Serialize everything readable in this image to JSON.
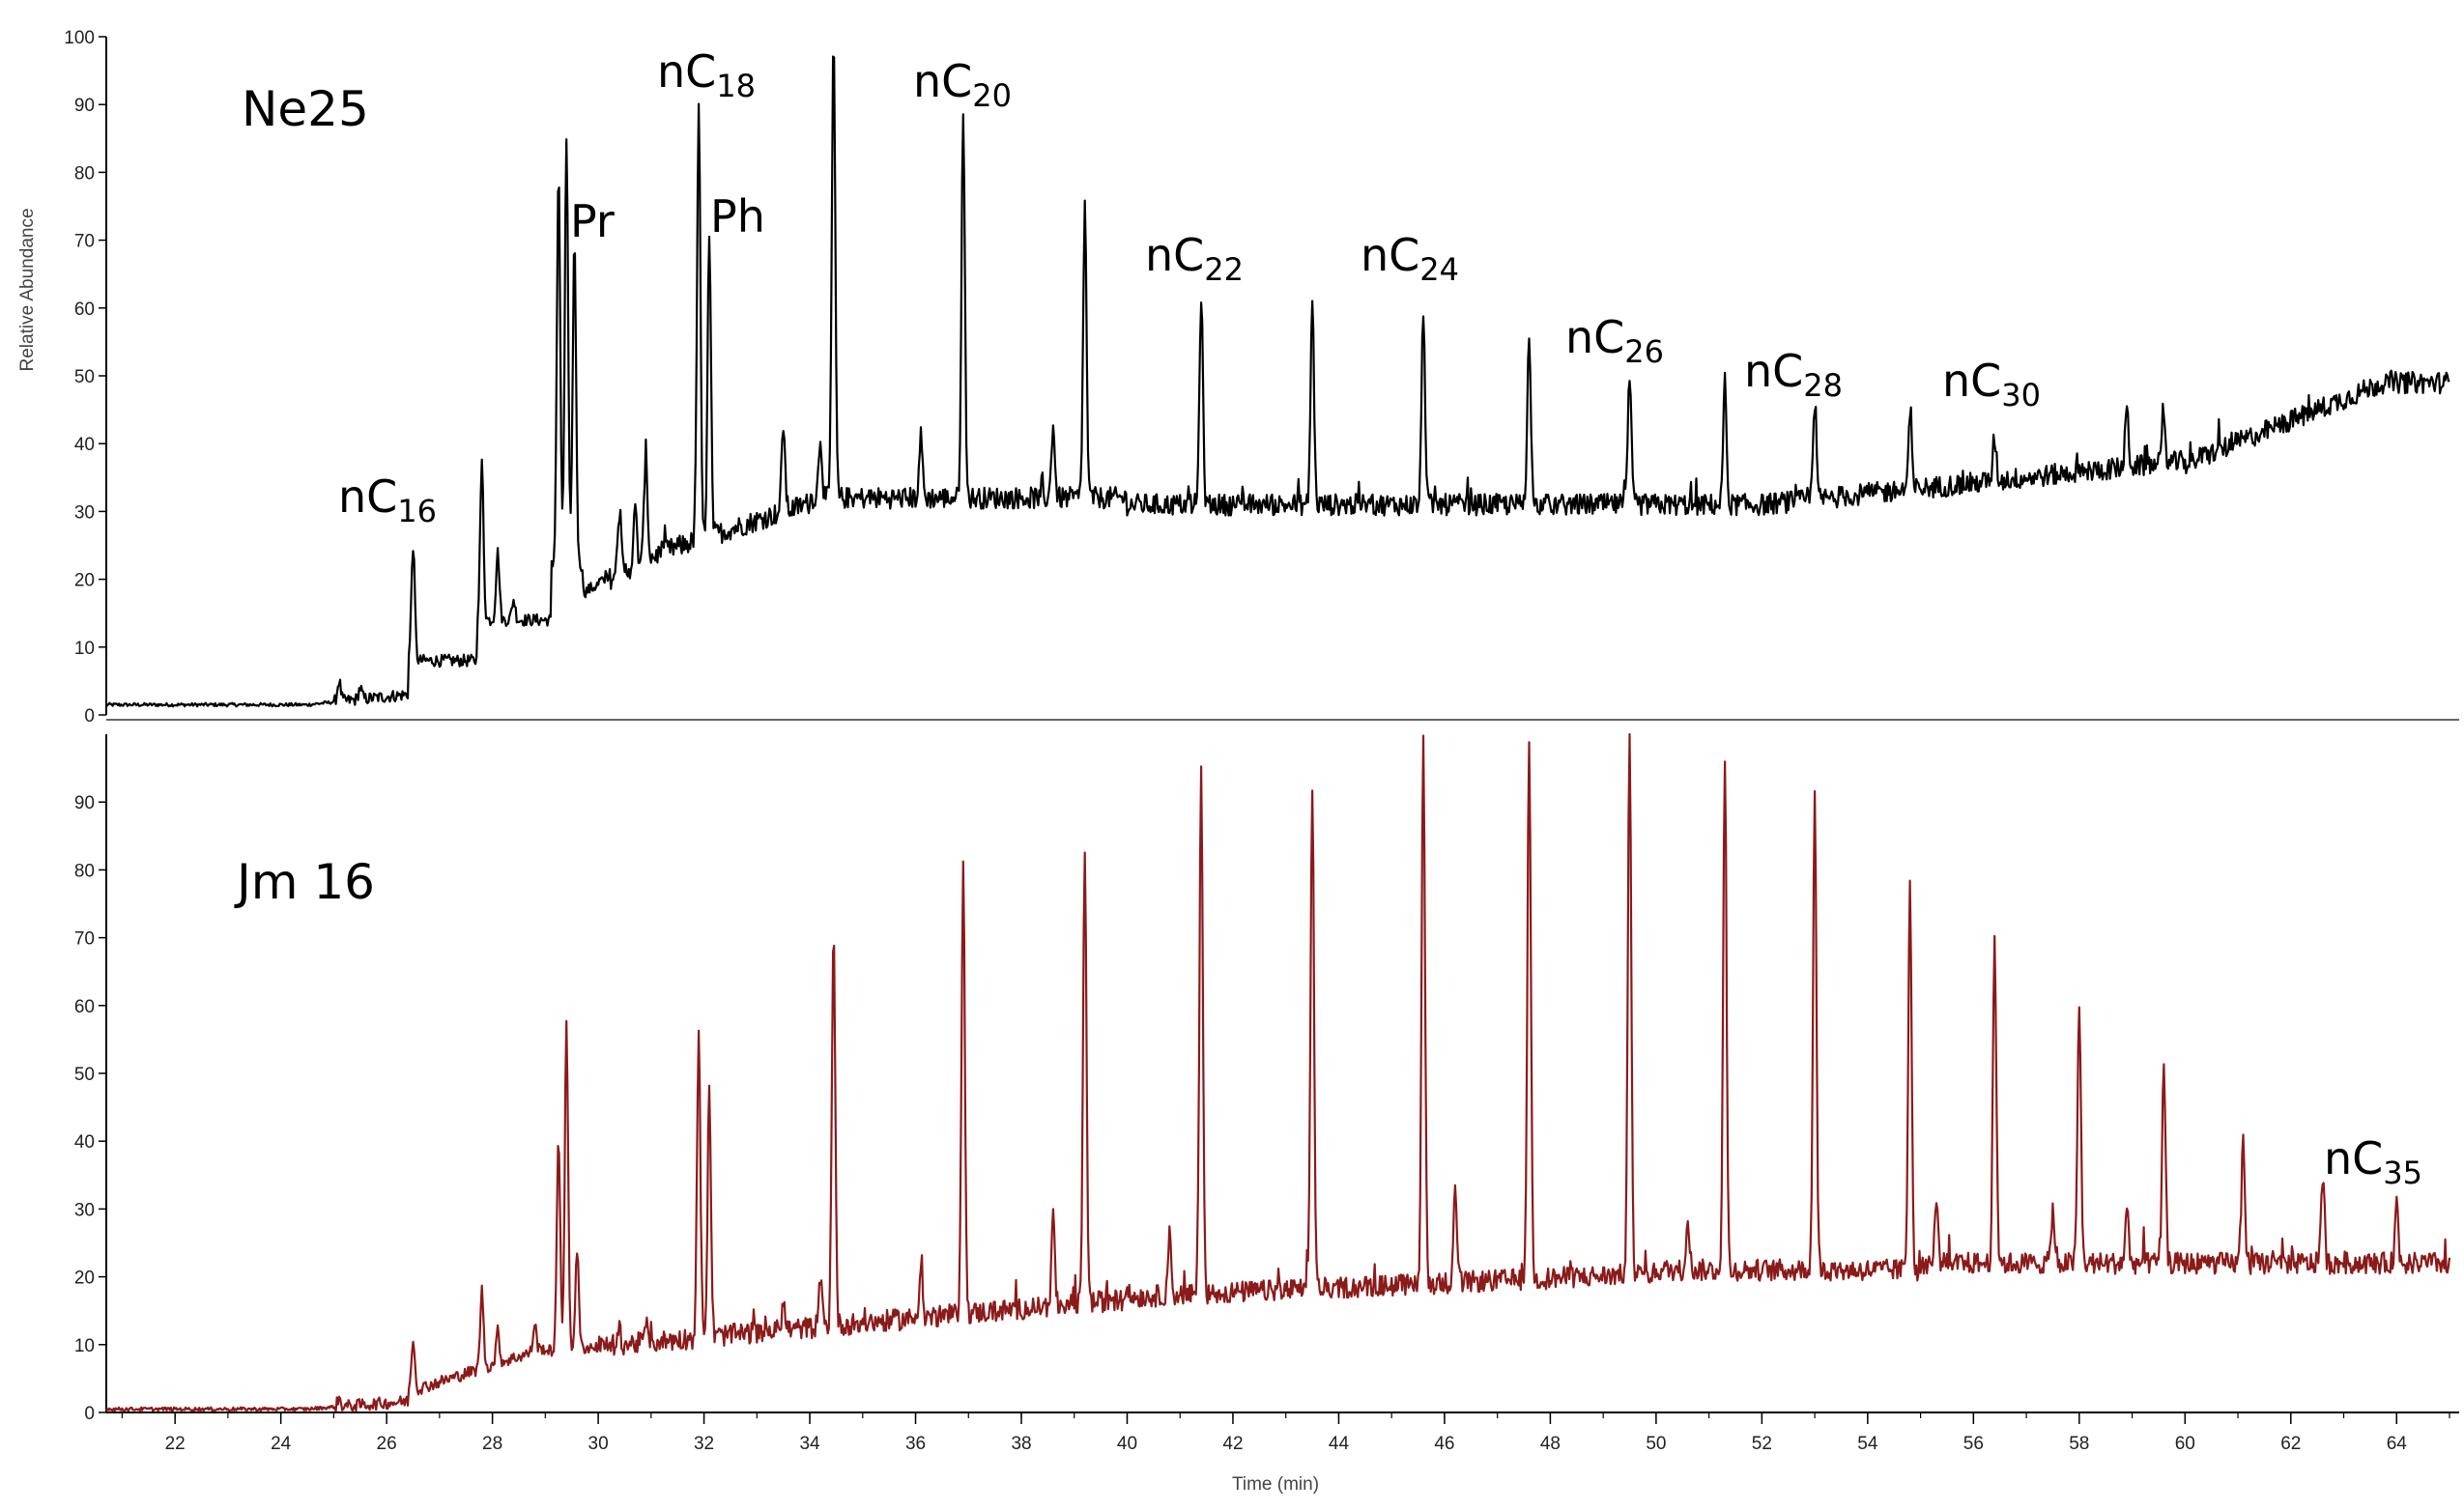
{
  "chart_data": {
    "type": "line",
    "xlabel": "Time (min)",
    "ylabel": "Relative Abundance",
    "xlim": [
      20.7,
      65
    ],
    "x_ticks": [
      22,
      24,
      26,
      28,
      30,
      32,
      34,
      36,
      38,
      40,
      42,
      44,
      46,
      48,
      50,
      52,
      54,
      56,
      58,
      60,
      62,
      64
    ],
    "top_panel": {
      "name": "Ne25",
      "color": "#000000",
      "ylim": [
        0,
        100
      ],
      "y_ticks": [
        0,
        10,
        20,
        30,
        40,
        50,
        60,
        70,
        80,
        90,
        100
      ],
      "peaks": [
        {
          "x": 25.1,
          "y": 5
        },
        {
          "x": 25.5,
          "y": 4
        },
        {
          "x": 26.5,
          "y": 25
        },
        {
          "x": 27.8,
          "y": 37
        },
        {
          "x": 28.1,
          "y": 24
        },
        {
          "x": 28.4,
          "y": 17
        },
        {
          "x": 29.25,
          "y": 80
        },
        {
          "x": 29.4,
          "y": 85
        },
        {
          "x": 29.55,
          "y": 70
        },
        {
          "x": 30.4,
          "y": 30
        },
        {
          "x": 30.7,
          "y": 30
        },
        {
          "x": 30.9,
          "y": 39
        },
        {
          "x": 31.9,
          "y": 89
        },
        {
          "x": 32.1,
          "y": 70
        },
        {
          "x": 33.5,
          "y": 43
        },
        {
          "x": 34.2,
          "y": 41
        },
        {
          "x": 34.45,
          "y": 100
        },
        {
          "x": 36.1,
          "y": 41
        },
        {
          "x": 36.9,
          "y": 88
        },
        {
          "x": 38.6,
          "y": 43
        },
        {
          "x": 39.2,
          "y": 75
        },
        {
          "x": 41.4,
          "y": 62
        },
        {
          "x": 43.5,
          "y": 61
        },
        {
          "x": 45.6,
          "y": 60
        },
        {
          "x": 47.6,
          "y": 57
        },
        {
          "x": 49.5,
          "y": 50
        },
        {
          "x": 51.3,
          "y": 49
        },
        {
          "x": 53.0,
          "y": 45
        },
        {
          "x": 54.8,
          "y": 44
        },
        {
          "x": 56.4,
          "y": 41
        },
        {
          "x": 58.9,
          "y": 45
        },
        {
          "x": 59.6,
          "y": 43
        }
      ],
      "annotations": [
        {
          "base": "nC",
          "sub": "16",
          "peak_x": 26.5
        },
        {
          "base": "Pr",
          "sub": "",
          "peak_x": 29.4
        },
        {
          "base": "nC",
          "sub": "18",
          "peak_x": 31.9
        },
        {
          "base": "Ph",
          "sub": "",
          "peak_x": 32.1
        },
        {
          "base": "nC",
          "sub": "20",
          "peak_x": 36.9
        },
        {
          "base": "nC",
          "sub": "22",
          "peak_x": 41.4
        },
        {
          "base": "nC",
          "sub": "24",
          "peak_x": 45.6
        },
        {
          "base": "nC",
          "sub": "26",
          "peak_x": 49.5
        },
        {
          "base": "nC",
          "sub": "28",
          "peak_x": 53.0
        },
        {
          "base": "nC",
          "sub": "30",
          "peak_x": 56.4
        }
      ]
    },
    "bottom_panel": {
      "name": "Jm 16",
      "color": "#8b1a1a",
      "ylim": [
        0,
        100
      ],
      "y_ticks": [
        0,
        10,
        20,
        30,
        40,
        50,
        60,
        70,
        80,
        90
      ],
      "peaks": [
        {
          "x": 25.1,
          "y": 2
        },
        {
          "x": 26.5,
          "y": 11
        },
        {
          "x": 27.8,
          "y": 18
        },
        {
          "x": 28.1,
          "y": 12
        },
        {
          "x": 28.8,
          "y": 13
        },
        {
          "x": 29.25,
          "y": 40
        },
        {
          "x": 29.4,
          "y": 57
        },
        {
          "x": 29.6,
          "y": 24
        },
        {
          "x": 30.4,
          "y": 12
        },
        {
          "x": 30.9,
          "y": 13
        },
        {
          "x": 31.9,
          "y": 55
        },
        {
          "x": 32.1,
          "y": 47
        },
        {
          "x": 33.5,
          "y": 16
        },
        {
          "x": 34.2,
          "y": 20
        },
        {
          "x": 34.45,
          "y": 72
        },
        {
          "x": 36.1,
          "y": 22
        },
        {
          "x": 36.9,
          "y": 80
        },
        {
          "x": 38.6,
          "y": 28
        },
        {
          "x": 39.2,
          "y": 83
        },
        {
          "x": 40.8,
          "y": 26
        },
        {
          "x": 41.4,
          "y": 95
        },
        {
          "x": 43.5,
          "y": 93
        },
        {
          "x": 45.6,
          "y": 99
        },
        {
          "x": 46.2,
          "y": 34
        },
        {
          "x": 47.6,
          "y": 100
        },
        {
          "x": 49.5,
          "y": 100
        },
        {
          "x": 50.6,
          "y": 29
        },
        {
          "x": 51.3,
          "y": 96
        },
        {
          "x": 53.0,
          "y": 91
        },
        {
          "x": 54.8,
          "y": 79
        },
        {
          "x": 55.3,
          "y": 31
        },
        {
          "x": 56.4,
          "y": 69
        },
        {
          "x": 57.5,
          "y": 30
        },
        {
          "x": 58.0,
          "y": 60
        },
        {
          "x": 58.9,
          "y": 30
        },
        {
          "x": 59.6,
          "y": 51
        },
        {
          "x": 61.1,
          "y": 40
        },
        {
          "x": 62.6,
          "y": 35
        },
        {
          "x": 64.0,
          "y": 31
        }
      ],
      "annotations": [
        {
          "base": "nC",
          "sub": "35",
          "peak_x": 64.0
        }
      ]
    }
  }
}
